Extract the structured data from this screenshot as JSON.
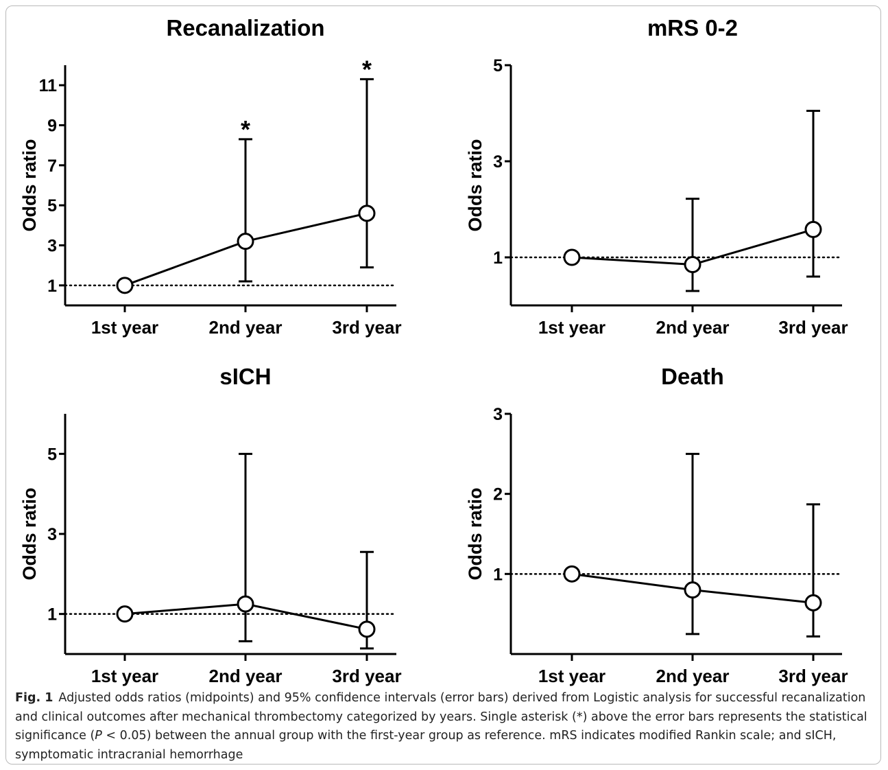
{
  "chart_data": [
    {
      "type": "scatter",
      "title": "Recanalization",
      "ylabel": "Odds ratio",
      "xlabel": "",
      "categories": [
        "1st year",
        "2nd year",
        "3rd year"
      ],
      "values": [
        1,
        3.2,
        4.6
      ],
      "ci_lower": [
        1,
        1.2,
        1.9
      ],
      "ci_upper": [
        1,
        8.3,
        11.3
      ],
      "significance": [
        "",
        "*",
        "*"
      ],
      "yticks": [
        "1",
        "3",
        "5",
        "7",
        "9",
        "11"
      ],
      "ylim": [
        0,
        12
      ],
      "reference_line": 1
    },
    {
      "type": "scatter",
      "title": "mRS 0-2",
      "ylabel": "Odds ratio",
      "xlabel": "",
      "categories": [
        "1st year",
        "2nd year",
        "3rd year"
      ],
      "values": [
        1,
        0.85,
        1.58
      ],
      "ci_lower": [
        1,
        0.3,
        0.6
      ],
      "ci_upper": [
        1,
        2.22,
        4.05
      ],
      "significance": [
        "",
        "",
        ""
      ],
      "yticks": [
        "1",
        "3",
        "5"
      ],
      "ylim": [
        0,
        5
      ],
      "reference_line": 1
    },
    {
      "type": "scatter",
      "title": "sICH",
      "ylabel": "Odds ratio",
      "xlabel": "",
      "categories": [
        "1st year",
        "2nd year",
        "3rd year"
      ],
      "values": [
        1,
        1.25,
        0.62
      ],
      "ci_lower": [
        1,
        0.32,
        0.14
      ],
      "ci_upper": [
        1,
        5.0,
        2.55
      ],
      "significance": [
        "",
        "",
        ""
      ],
      "yticks": [
        "1",
        "3",
        "5"
      ],
      "ylim": [
        0,
        6
      ],
      "reference_line": 1
    },
    {
      "type": "scatter",
      "title": "Death",
      "ylabel": "Odds ratio",
      "xlabel": "",
      "categories": [
        "1st year",
        "2nd year",
        "3rd year"
      ],
      "values": [
        1,
        0.8,
        0.64
      ],
      "ci_lower": [
        1,
        0.25,
        0.22
      ],
      "ci_upper": [
        1,
        2.5,
        1.87
      ],
      "significance": [
        "",
        "",
        ""
      ],
      "yticks": [
        "1",
        "2",
        "3"
      ],
      "ylim": [
        0,
        3
      ],
      "reference_line": 1
    }
  ],
  "caption": {
    "label": "Fig. 1",
    "text_a": "Adjusted odds ratios (midpoints) and 95% confidence intervals (error bars) derived from Logistic analysis for successful recanalization and clinical outcomes after mechanical thrombectomy categorized by years. Single asterisk (*) above the error bars represents the statistical significance (",
    "p_symbol": "P",
    "text_b": " < 0.05) between the annual group with the first-year group as reference. mRS indicates modified Rankin scale; and sICH, symptomatic intracranial hemorrhage"
  }
}
